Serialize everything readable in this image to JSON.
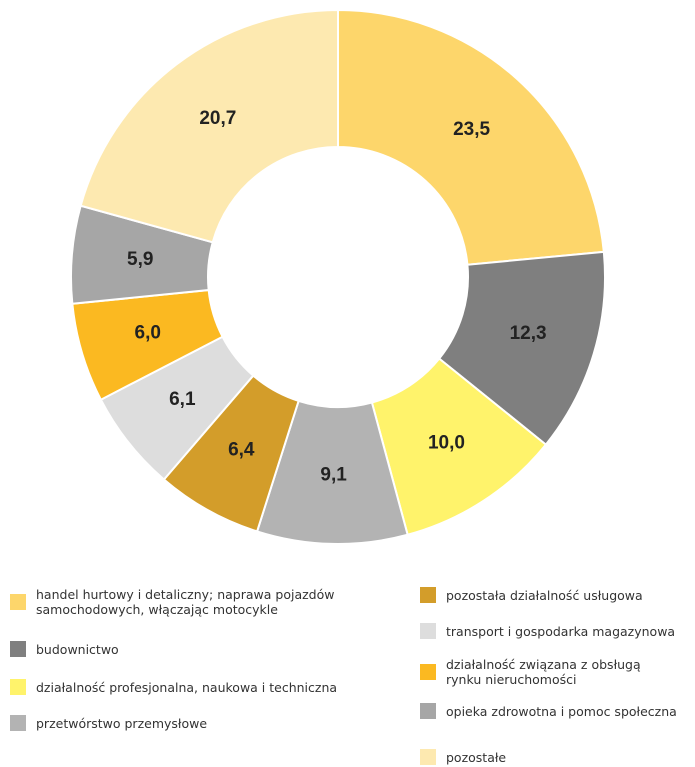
{
  "chart_data": {
    "type": "donut",
    "categories": [
      "handel hurtowy i detaliczny; naprawa pojazdów samochodowych, włączając motocykle",
      "budownictwo",
      "działalność profesjonalna, naukowa i techniczna",
      "przetwórstwo przemysłowe",
      "pozostała działalność usługowa",
      "transport i gospodarka magazynowa",
      "działalność związana z obsługą rynku nieruchomości",
      "opieka zdrowotna i pomoc społeczna",
      "pozostałe"
    ],
    "values": [
      23.5,
      12.3,
      10.0,
      9.1,
      6.4,
      6.1,
      6.0,
      5.9,
      20.7
    ],
    "value_labels": [
      "23,5",
      "12,3",
      "10,0",
      "9,1",
      "6,4",
      "6,1",
      "6,0",
      "5,9",
      "20,7"
    ],
    "colors": [
      "#fdd66b",
      "#7f7f7f",
      "#fff36b",
      "#b3b3b3",
      "#d39d2a",
      "#dddddd",
      "#fbb921",
      "#a6a6a6",
      "#fde9b0"
    ]
  }
}
